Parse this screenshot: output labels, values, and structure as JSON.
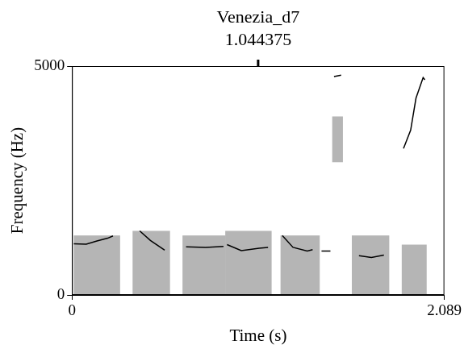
{
  "chart_data": {
    "type": "line",
    "title": "Venezia_d7",
    "cursor": 1.044375,
    "x_label": "Time (s)",
    "y_label": "Frequency (Hz)",
    "xlim": [
      0,
      2.089
    ],
    "xticks": [
      0,
      2.089
    ],
    "ylim": [
      0,
      5000
    ],
    "yticks": [
      0,
      5000
    ],
    "grid": false,
    "color": "#000000",
    "x": [
      0.01,
      0.08,
      0.14,
      0.2,
      0.23,
      null,
      0.38,
      0.44,
      0.52,
      null,
      0.64,
      0.75,
      0.85,
      null,
      0.87,
      0.95,
      1.05,
      1.1,
      null,
      1.18,
      1.24,
      1.32,
      1.35,
      null,
      1.4,
      1.45,
      null,
      1.47,
      1.51,
      null,
      1.61,
      1.68,
      1.75,
      null,
      1.86,
      1.9,
      1.93,
      1.97,
      1.98
    ],
    "values": [
      1120,
      1110,
      1180,
      1240,
      1290,
      null,
      1400,
      1190,
      980,
      null,
      1050,
      1040,
      1060,
      null,
      1100,
      970,
      1020,
      1040,
      null,
      1300,
      1040,
      960,
      990,
      null,
      960,
      960,
      null,
      4770,
      4800,
      null,
      860,
      820,
      870,
      null,
      3200,
      3600,
      4300,
      4750,
      4700
    ],
    "spectrogram_regions": [
      {
        "start": 0.01,
        "end": 0.27,
        "low": 0,
        "high": 1300
      },
      {
        "start": 0.34,
        "end": 0.55,
        "low": 0,
        "high": 1400
      },
      {
        "start": 0.62,
        "end": 0.86,
        "low": 0,
        "high": 1300
      },
      {
        "start": 0.86,
        "end": 1.12,
        "low": 0,
        "high": 1400
      },
      {
        "start": 1.17,
        "end": 1.39,
        "low": 0,
        "high": 1300
      },
      {
        "start": 1.46,
        "end": 1.52,
        "low": 2900,
        "high": 3900
      },
      {
        "start": 1.57,
        "end": 1.78,
        "low": 0,
        "high": 1300
      },
      {
        "start": 1.85,
        "end": 1.99,
        "low": 0,
        "high": 1100
      }
    ]
  }
}
